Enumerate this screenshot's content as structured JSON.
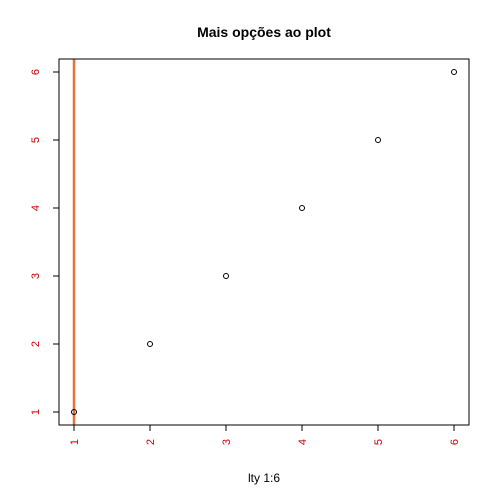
{
  "chart_data": {
    "type": "scatter",
    "title": "Mais opções ao plot",
    "xlabel": "lty 1:6",
    "ylabel": "",
    "xlim": [
      1,
      6
    ],
    "ylim": [
      1,
      6
    ],
    "x": [
      1,
      2,
      3,
      4,
      5,
      6
    ],
    "y": [
      1,
      2,
      3,
      4,
      5,
      6
    ],
    "xticks": [
      "1",
      "2",
      "3",
      "4",
      "5",
      "6"
    ],
    "yticks": [
      "1",
      "2",
      "3",
      "4",
      "5",
      "6"
    ],
    "vline": {
      "x": 1,
      "color": "#e8703a"
    },
    "point_style": "open-circle",
    "axis_label_color": "#cc0000",
    "grid": false,
    "legend": "none"
  }
}
